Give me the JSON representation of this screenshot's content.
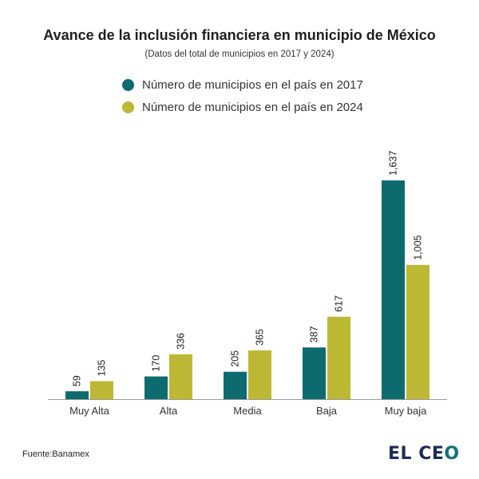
{
  "title": "Avance de la inclusión financiera en municipio de México",
  "subtitle": "(Datos del total de municipios en 2017 y 2024)",
  "source": "Fuente:Banamex",
  "logo": {
    "text": "EL CEO",
    "color_primary": "#1d2b5a",
    "color_accent": "#0f7276"
  },
  "chart_data": {
    "type": "bar",
    "title": "Avance de la inclusión financiera en municipio de México",
    "subtitle": "(Datos del total de municipios en 2017 y 2024)",
    "xlabel": "",
    "ylabel": "",
    "categories": [
      "Muy Alta",
      "Alta",
      "Media",
      "Baja",
      "Muy baja"
    ],
    "series": [
      {
        "name": "Número de municipios en el país en 2017",
        "values": [
          59,
          170,
          205,
          387,
          1637
        ],
        "labels": [
          "59",
          "170",
          "205",
          "387",
          "1,637"
        ],
        "color": "#0d6b70"
      },
      {
        "name": "Número de municipios en el país en 2024",
        "values": [
          135,
          336,
          365,
          617,
          1005
        ],
        "labels": [
          "135",
          "336",
          "365",
          "617",
          "1,005"
        ],
        "color": "#bdb834"
      }
    ],
    "ylim": [
      0,
      1637
    ],
    "grid": false,
    "legend_position": "top"
  }
}
